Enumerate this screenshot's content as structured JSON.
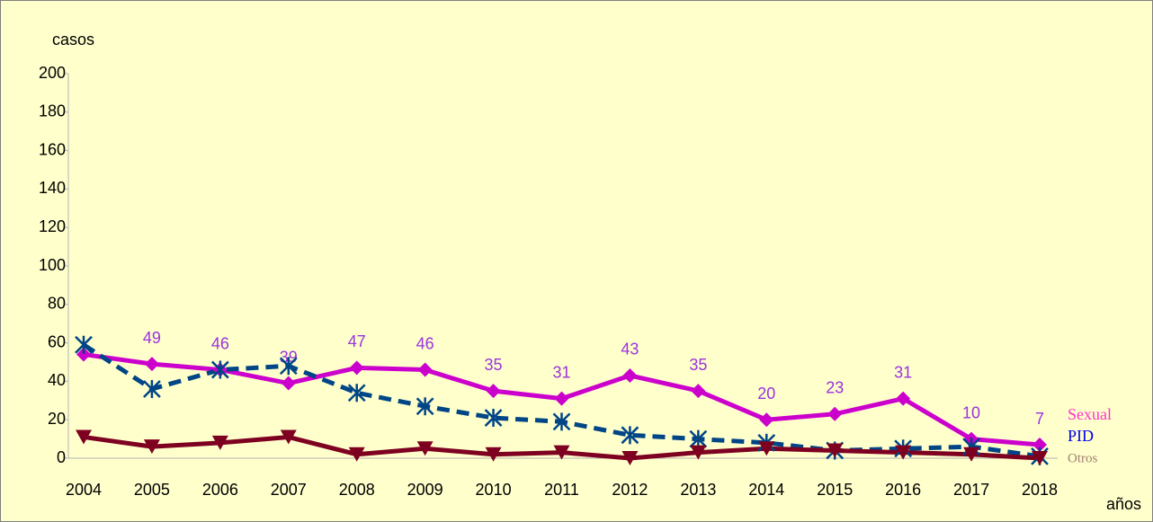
{
  "chart_data": {
    "type": "line",
    "y_label": "casos",
    "x_label": "años",
    "categories": [
      "2004",
      "2005",
      "2006",
      "2007",
      "2008",
      "2009",
      "2010",
      "2011",
      "2012",
      "2013",
      "2014",
      "2015",
      "2016",
      "2017",
      "2018"
    ],
    "series": [
      {
        "name": "Sexual",
        "color": "#cc00cc",
        "marker": "diamond",
        "dashed": false,
        "values": [
          54,
          49,
          46,
          39,
          47,
          46,
          35,
          31,
          43,
          35,
          20,
          23,
          31,
          10,
          7
        ],
        "value_labels": [
          null,
          "49",
          "46",
          "39",
          "47",
          "46",
          "35",
          "31",
          "43",
          "35",
          "20",
          "23",
          "31",
          "10",
          "7"
        ]
      },
      {
        "name": "PID",
        "color": "#004586",
        "marker": "asterisk",
        "dashed": true,
        "values": [
          59,
          36,
          46,
          48,
          34,
          27,
          21,
          19,
          12,
          10,
          8,
          4,
          5,
          6,
          1
        ]
      },
      {
        "name": "Otros",
        "color": "#7e0021",
        "marker": "triangle-down",
        "dashed": false,
        "values": [
          11,
          6,
          8,
          11,
          2,
          5,
          2,
          3,
          0,
          3,
          5,
          4,
          3,
          2,
          0
        ]
      }
    ],
    "legend_colors": [
      "#ff33cc",
      "#0000ee",
      "#a08070"
    ],
    "ylim": [
      0,
      200
    ],
    "yticks": [
      0,
      20,
      40,
      60,
      80,
      100,
      120,
      140,
      160,
      180,
      200
    ]
  }
}
